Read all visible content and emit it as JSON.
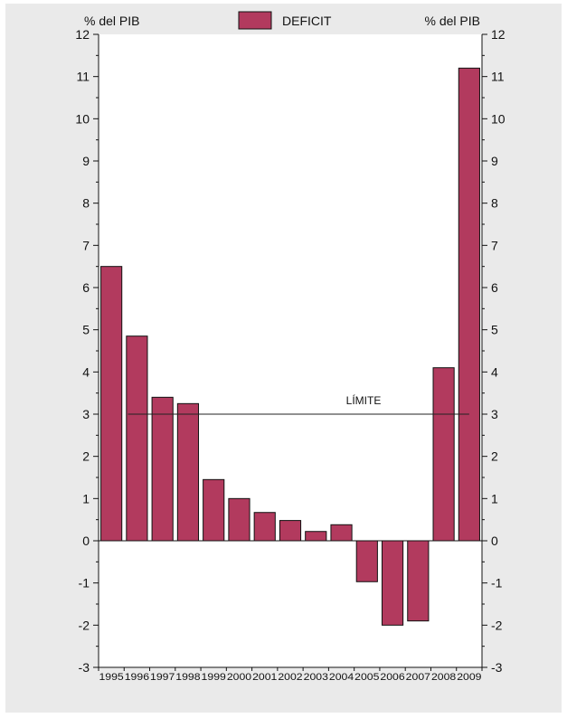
{
  "chart_data": {
    "type": "bar",
    "title": "",
    "legend": {
      "label": "DEFICIT",
      "placement": "top-center"
    },
    "ylabel_left": "% del PIB",
    "ylabel_right": "% del PIB",
    "ylim": [
      -3,
      12
    ],
    "yticks": [
      -3,
      -2,
      -1,
      0,
      1,
      2,
      3,
      4,
      5,
      6,
      7,
      8,
      9,
      10,
      11,
      12
    ],
    "categories": [
      "1995",
      "1996",
      "1997",
      "1998",
      "1999",
      "2000",
      "2001",
      "2002",
      "2003",
      "2004",
      "2005",
      "2006",
      "2007",
      "2008",
      "2009"
    ],
    "series": [
      {
        "name": "DEFICIT",
        "values": [
          6.5,
          4.85,
          3.4,
          3.25,
          1.45,
          1.0,
          0.67,
          0.48,
          0.22,
          0.38,
          -0.97,
          -2.0,
          -1.9,
          4.1,
          11.2
        ]
      }
    ],
    "limit": {
      "label": "LÍMITE",
      "value": 3,
      "from": "1996",
      "to": "2009"
    },
    "grid": false,
    "colors": {
      "bar": "#b23a5e",
      "bar_stroke": "#111111",
      "line": "#222222"
    }
  }
}
